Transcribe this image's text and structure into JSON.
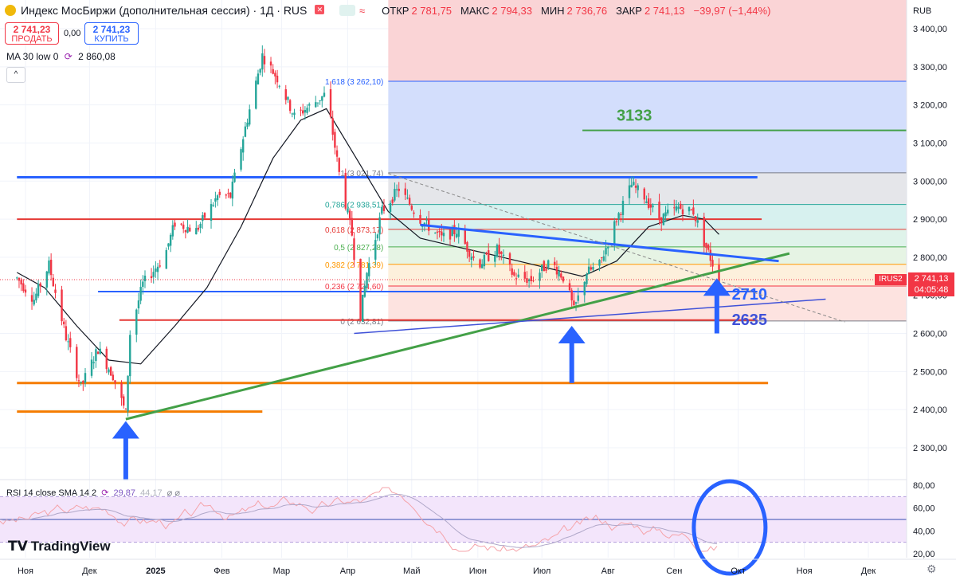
{
  "header": {
    "title": "Индекс МосБиржи (дополнительная сессия) · 1Д · RUS",
    "ohlc": [
      {
        "label": "ОТКР",
        "value": "2 781,75"
      },
      {
        "label": "МАКС",
        "value": "2 794,33"
      },
      {
        "label": "МИН",
        "value": "2 736,76"
      },
      {
        "label": "ЗАКР",
        "value": "2 741,13"
      },
      {
        "label": "",
        "value": "−39,97 (−1,44%)"
      }
    ],
    "sell_price": "2 741,23",
    "sell_label": "ПРОДАТЬ",
    "spread": "0,00",
    "buy_price": "2 741,23",
    "buy_label": "КУПИТЬ",
    "ma_label": "MA 30 low 0",
    "ma_value": "2 860,08",
    "currency": "RUB"
  },
  "rsi": {
    "label": "RSI 14 close SMA 14 2",
    "value1": "29,87",
    "value2": "44,17",
    "ticks": [
      "80,00",
      "60,00",
      "40,00",
      "20,00"
    ]
  },
  "logo": "TradingView",
  "price_label": {
    "ticker": "IRUS2",
    "price": "2 741,13",
    "timer": "04:05:48"
  },
  "colors": {
    "up": "#26a69a",
    "down": "#f23645",
    "blue": "#2962ff",
    "green": "#43a047",
    "orange": "#f57c00",
    "darkred": "#e53935"
  },
  "chart_data": {
    "type": "candlestick",
    "title": "Индекс МосБиржи (дополнительная сессия) · 1Д · RUS",
    "y_axis": {
      "min": 2200,
      "max": 3450,
      "unit": "RUB",
      "ticks": [
        3400,
        3300,
        3200,
        3100,
        3000,
        2900,
        2800,
        2700,
        2600,
        2500,
        2400,
        2300
      ],
      "tick_labels": [
        "3 400,00",
        "3 300,00",
        "3 200,00",
        "3 100,00",
        "3 000,00",
        "2 900,00",
        "2 800,00",
        "2 700,00",
        "2 600,00",
        "2 500,00",
        "2 400,00",
        "2 300,00"
      ]
    },
    "x_axis": {
      "start": "2024-10-28",
      "end": "2025-12-28",
      "ticks": [
        {
          "date": "2024-11-01",
          "label": "Ноя"
        },
        {
          "date": "2024-12-01",
          "label": "Дек"
        },
        {
          "date": "2025-01-01",
          "label": "2025"
        },
        {
          "date": "2025-02-01",
          "label": "Фев"
        },
        {
          "date": "2025-03-01",
          "label": "Мар"
        },
        {
          "date": "2025-04-01",
          "label": "Апр"
        },
        {
          "date": "2025-05-01",
          "label": "Май"
        },
        {
          "date": "2025-06-01",
          "label": "Июн"
        },
        {
          "date": "2025-07-01",
          "label": "Июл"
        },
        {
          "date": "2025-08-01",
          "label": "Авг"
        },
        {
          "date": "2025-09-01",
          "label": "Сен"
        },
        {
          "date": "2025-10-01",
          "label": "Окт"
        },
        {
          "date": "2025-11-01",
          "label": "Ноя"
        },
        {
          "date": "2025-12-01",
          "label": "Дек"
        }
      ]
    },
    "price_path": [
      [
        "2024-10-28",
        2745
      ],
      [
        "2024-11-05",
        2690
      ],
      [
        "2024-11-12",
        2780
      ],
      [
        "2024-11-20",
        2590
      ],
      [
        "2024-11-27",
        2460
      ],
      [
        "2024-12-05",
        2560
      ],
      [
        "2024-12-12",
        2490
      ],
      [
        "2024-12-18",
        2390
      ],
      [
        "2024-12-20",
        2600
      ],
      [
        "2024-12-26",
        2730
      ],
      [
        "2025-01-05",
        2800
      ],
      [
        "2025-01-10",
        2890
      ],
      [
        "2025-01-20",
        2870
      ],
      [
        "2025-01-30",
        2960
      ],
      [
        "2025-02-05",
        2960
      ],
      [
        "2025-02-12",
        3140
      ],
      [
        "2025-02-20",
        3330
      ],
      [
        "2025-02-27",
        3270
      ],
      [
        "2025-03-07",
        3170
      ],
      [
        "2025-03-15",
        3200
      ],
      [
        "2025-03-22",
        3230
      ],
      [
        "2025-03-28",
        3020
      ],
      [
        "2025-04-03",
        2860
      ],
      [
        "2025-04-07",
        2650
      ],
      [
        "2025-04-10",
        2760
      ],
      [
        "2025-04-17",
        2920
      ],
      [
        "2025-04-25",
        2980
      ],
      [
        "2025-05-05",
        2900
      ],
      [
        "2025-05-15",
        2850
      ],
      [
        "2025-05-22",
        2870
      ],
      [
        "2025-06-01",
        2780
      ],
      [
        "2025-06-10",
        2820
      ],
      [
        "2025-06-18",
        2750
      ],
      [
        "2025-06-26",
        2740
      ],
      [
        "2025-07-05",
        2790
      ],
      [
        "2025-07-12",
        2740
      ],
      [
        "2025-07-16",
        2660
      ],
      [
        "2025-07-22",
        2760
      ],
      [
        "2025-07-28",
        2780
      ],
      [
        "2025-08-05",
        2900
      ],
      [
        "2025-08-12",
        2990
      ],
      [
        "2025-08-18",
        2960
      ],
      [
        "2025-08-25",
        2900
      ],
      [
        "2025-09-03",
        2930
      ],
      [
        "2025-09-10",
        2920
      ],
      [
        "2025-09-15",
        2840
      ],
      [
        "2025-09-22",
        2741.13
      ]
    ],
    "ma30_path": [
      [
        "2024-10-28",
        2760
      ],
      [
        "2024-11-10",
        2720
      ],
      [
        "2024-11-25",
        2620
      ],
      [
        "2024-12-10",
        2530
      ],
      [
        "2024-12-25",
        2520
      ],
      [
        "2025-01-10",
        2620
      ],
      [
        "2025-01-25",
        2720
      ],
      [
        "2025-02-10",
        2880
      ],
      [
        "2025-02-25",
        3060
      ],
      [
        "2025-03-10",
        3160
      ],
      [
        "2025-03-22",
        3190
      ],
      [
        "2025-04-05",
        3060
      ],
      [
        "2025-04-20",
        2920
      ],
      [
        "2025-05-05",
        2850
      ],
      [
        "2025-05-20",
        2830
      ],
      [
        "2025-06-05",
        2810
      ],
      [
        "2025-06-20",
        2790
      ],
      [
        "2025-07-05",
        2770
      ],
      [
        "2025-07-20",
        2750
      ],
      [
        "2025-08-05",
        2790
      ],
      [
        "2025-08-20",
        2880
      ],
      [
        "2025-09-05",
        2910
      ],
      [
        "2025-09-15",
        2900
      ],
      [
        "2025-09-22",
        2860.08
      ]
    ],
    "horizontal_levels": [
      {
        "value": 3010,
        "start": "2024-10-28",
        "end": "2025-10-10",
        "color": "#2962ff"
      },
      {
        "value": 2900,
        "start": "2024-10-28",
        "end": "2025-10-12",
        "color": "#e53935"
      },
      {
        "value": 3133,
        "start": "2025-07-20",
        "end": "2025-12-28",
        "color": "#43a047",
        "label": "3133"
      },
      {
        "value": 2710,
        "start": "2024-12-05",
        "end": "2025-10-10",
        "color": "#2962ff",
        "label": "2710"
      },
      {
        "value": 2635,
        "start": "2024-12-15",
        "end": "2025-10-10",
        "color": "#e53935",
        "label": "2635"
      },
      {
        "value": 2470,
        "start": "2024-10-28",
        "end": "2025-10-15",
        "color": "#f57c00"
      },
      {
        "value": 2395,
        "start": "2024-10-28",
        "end": "2025-02-20",
        "color": "#f57c00"
      }
    ],
    "trendlines": [
      {
        "from": [
          "2024-12-18",
          2375
        ],
        "to": [
          "2025-10-25",
          2810
        ],
        "color": "#43a047"
      },
      {
        "from": [
          "2025-05-05",
          2885
        ],
        "to": [
          "2025-10-20",
          2790
        ],
        "color": "#2962ff"
      },
      {
        "from": [
          "2025-04-04",
          2600
        ],
        "to": [
          "2025-11-11",
          2690
        ],
        "color": "#3f51d8"
      },
      {
        "from": [
          "2025-04-20",
          3020
        ],
        "to": [
          "2025-11-20",
          2630
        ],
        "color": "#888888",
        "dashed": true
      }
    ],
    "fibonacci": {
      "start": "2025-04-20",
      "end": "2025-12-28",
      "levels": [
        {
          "ratio": "1,618",
          "value": 3262.1,
          "label": "1,618 (3 262,10)"
        },
        {
          "ratio": "1",
          "value": 3021.74,
          "label": "1 (3 021,74)"
        },
        {
          "ratio": "0,786",
          "value": 2938.51,
          "label": "0,786 (2 938,51)"
        },
        {
          "ratio": "0,618",
          "value": 2873.17,
          "label": "0,618 (2 873,17)"
        },
        {
          "ratio": "0,5",
          "value": 2827.28,
          "label": "0,5 (2 827,28)"
        },
        {
          "ratio": "0,382",
          "value": 2781.39,
          "label": "0,382 (2 781,39)"
        },
        {
          "ratio": "0,236",
          "value": 2724.6,
          "label": "0,236 (2 724,60)"
        },
        {
          "ratio": "0",
          "value": 2632.81,
          "label": "0 (2 632,81)"
        }
      ]
    },
    "arrows": [
      {
        "date": "2024-12-18",
        "from": 2215,
        "to": 2370
      },
      {
        "date": "2025-07-15",
        "from": 2470,
        "to": 2620
      },
      {
        "date": "2025-09-21",
        "from": 2600,
        "to": 2745
      }
    ],
    "current_price": 2741.13
  }
}
